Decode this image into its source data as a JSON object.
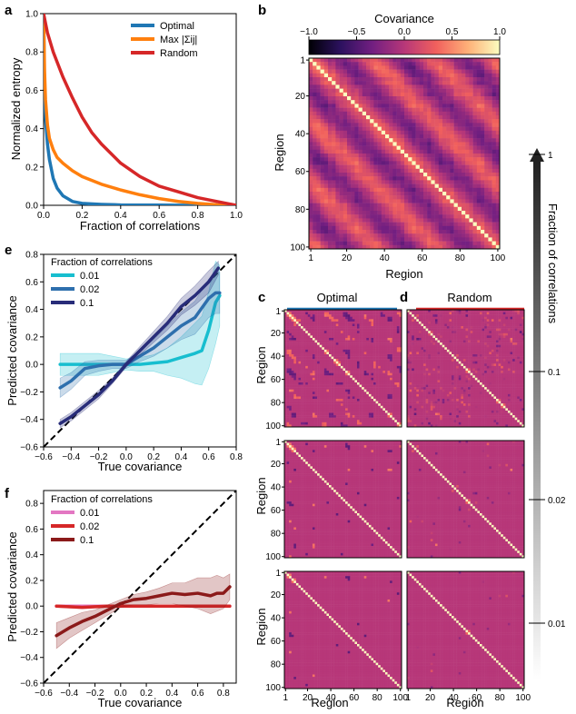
{
  "panels": {
    "a": "a",
    "b": "b",
    "c": "c",
    "d": "d",
    "e": "e",
    "f": "f"
  },
  "cmap": [
    "#000004",
    "#2c115f",
    "#721f81",
    "#b73779",
    "#f1605d",
    "#feb078",
    "#fcfdbf"
  ],
  "chart_data": [
    {
      "id": "a",
      "type": "line",
      "xlabel": "Fraction of correlations",
      "ylabel": "Normalized entropy",
      "xlim": [
        0,
        1
      ],
      "ylim": [
        0,
        1
      ],
      "xticks": [
        "0.0",
        "0.2",
        "0.4",
        "0.6",
        "0.8",
        "1.0"
      ],
      "yticks": [
        "0.0",
        "0.2",
        "0.4",
        "0.6",
        "0.8",
        "1.0"
      ],
      "legend": "top-right",
      "series": [
        {
          "name": "Optimal",
          "color": "#1f77b4",
          "x": [
            0,
            0.005,
            0.01,
            0.02,
            0.03,
            0.05,
            0.07,
            0.1,
            0.15,
            0.2,
            0.3,
            0.4,
            0.6,
            0.8,
            1.0
          ],
          "y": [
            1.0,
            0.6,
            0.45,
            0.32,
            0.24,
            0.14,
            0.09,
            0.05,
            0.02,
            0.01,
            0.005,
            0.002,
            0.001,
            0.0,
            0.0
          ]
        },
        {
          "name": "Max |Σij|",
          "color": "#ff7f0e",
          "x": [
            0,
            0.005,
            0.01,
            0.02,
            0.03,
            0.05,
            0.07,
            0.1,
            0.15,
            0.2,
            0.3,
            0.4,
            0.5,
            0.6,
            0.7,
            0.8,
            0.9,
            1.0
          ],
          "y": [
            1.0,
            0.7,
            0.55,
            0.42,
            0.35,
            0.29,
            0.25,
            0.22,
            0.18,
            0.15,
            0.11,
            0.08,
            0.055,
            0.035,
            0.02,
            0.01,
            0.003,
            0.0
          ]
        },
        {
          "name": "Random",
          "color": "#d62728",
          "x": [
            0,
            0.01,
            0.02,
            0.05,
            0.1,
            0.15,
            0.2,
            0.25,
            0.3,
            0.4,
            0.5,
            0.6,
            0.7,
            0.8,
            0.9,
            1.0
          ],
          "y": [
            1.0,
            0.95,
            0.9,
            0.8,
            0.67,
            0.56,
            0.46,
            0.38,
            0.32,
            0.22,
            0.15,
            0.1,
            0.07,
            0.04,
            0.02,
            0.0
          ]
        }
      ]
    },
    {
      "id": "b",
      "type": "heatmap",
      "title": "Covariance",
      "xlabel": "Region",
      "ylabel": "Region",
      "ticks": [
        "1",
        "20",
        "40",
        "60",
        "80",
        "100"
      ],
      "colorbar_ticks": [
        "−1.0",
        "−0.5",
        "0.0",
        "0.5",
        "1.0"
      ],
      "colorbar_range": [
        -1,
        1
      ]
    },
    {
      "id": "c",
      "type": "heatmap",
      "title": "Optimal",
      "title_color": "#1f77b4",
      "xlabel": "Region",
      "ylabel": "Region",
      "ticks": [
        "1",
        "20",
        "40",
        "60",
        "80",
        "100"
      ],
      "rows": [
        0.1,
        0.02,
        0.01
      ]
    },
    {
      "id": "d",
      "type": "heatmap",
      "title": "Random",
      "title_color": "#d62728",
      "xlabel": "Region",
      "ticks": [
        "1",
        "20",
        "40",
        "60",
        "80",
        "100"
      ],
      "rows": [
        0.1,
        0.02,
        0.01
      ]
    },
    {
      "id": "side",
      "type": "colorbar",
      "label": "Fraction of correlations",
      "ticks": [
        "1",
        "0.1",
        "0.02",
        "0.01"
      ]
    },
    {
      "id": "e",
      "type": "line",
      "xlabel": "True covariance",
      "ylabel": "Predicted covariance",
      "xlim": [
        -0.6,
        0.8
      ],
      "ylim": [
        -0.6,
        0.8
      ],
      "xticks": [
        "−0.6",
        "−0.4",
        "−0.2",
        "0.0",
        "0.2",
        "0.4",
        "0.6",
        "0.8"
      ],
      "yticks": [
        "−0.6",
        "−0.4",
        "−0.2",
        "0.0",
        "0.2",
        "0.4",
        "0.6",
        "0.8"
      ],
      "legend_title": "Fraction of correlations",
      "series": [
        {
          "name": "0.01",
          "color": "#17becf",
          "x": [
            -0.48,
            -0.4,
            -0.3,
            -0.2,
            -0.1,
            0.0,
            0.1,
            0.2,
            0.3,
            0.4,
            0.5,
            0.55,
            0.6,
            0.65,
            0.68
          ],
          "y": [
            0.0,
            0.0,
            0.0,
            0.0,
            0.0,
            0.0,
            0.0,
            0.01,
            0.02,
            0.05,
            0.08,
            0.1,
            0.25,
            0.45,
            0.5
          ],
          "band": [
            0.08,
            0.08,
            0.08,
            0.08,
            0.06,
            0.04,
            0.05,
            0.06,
            0.1,
            0.15,
            0.22,
            0.25,
            0.28,
            0.3,
            0.22
          ]
        },
        {
          "name": "0.02",
          "color": "#2e6fad",
          "x": [
            -0.48,
            -0.4,
            -0.3,
            -0.2,
            -0.1,
            0.0,
            0.1,
            0.2,
            0.3,
            0.4,
            0.5,
            0.6,
            0.65,
            0.68
          ],
          "y": [
            -0.17,
            -0.12,
            -0.03,
            -0.01,
            0.0,
            0.0,
            0.06,
            0.12,
            0.2,
            0.28,
            0.34,
            0.48,
            0.52,
            0.52
          ],
          "band": [
            0.07,
            0.06,
            0.05,
            0.04,
            0.03,
            0.03,
            0.04,
            0.06,
            0.08,
            0.1,
            0.12,
            0.14,
            0.15,
            0.15
          ]
        },
        {
          "name": "0.1",
          "color": "#282c79",
          "x": [
            -0.48,
            -0.4,
            -0.3,
            -0.2,
            -0.1,
            0.0,
            0.1,
            0.2,
            0.3,
            0.4,
            0.5,
            0.6,
            0.67
          ],
          "y": [
            -0.43,
            -0.38,
            -0.3,
            -0.22,
            -0.12,
            0.0,
            0.1,
            0.2,
            0.3,
            0.42,
            0.5,
            0.6,
            0.7
          ],
          "band": [
            0.03,
            0.03,
            0.03,
            0.03,
            0.02,
            0.02,
            0.03,
            0.04,
            0.05,
            0.06,
            0.07,
            0.08,
            0.05
          ]
        }
      ]
    },
    {
      "id": "f",
      "type": "line",
      "xlabel": "True covariance",
      "ylabel": "Predicted covariance",
      "xlim": [
        -0.6,
        0.9
      ],
      "ylim": [
        -0.6,
        0.9
      ],
      "xticks": [
        "−0.6",
        "−0.4",
        "−0.2",
        "0.0",
        "0.2",
        "0.4",
        "0.6",
        "0.8"
      ],
      "yticks": [
        "−0.6",
        "−0.4",
        "−0.2",
        "0.0",
        "0.2",
        "0.4",
        "0.6",
        "0.8"
      ],
      "legend_title": "Fraction of correlations",
      "series": [
        {
          "name": "0.01",
          "color": "#e377c2",
          "x": [
            -0.5,
            -0.3,
            -0.1,
            0.1,
            0.3,
            0.5,
            0.7,
            0.85
          ],
          "y": [
            0.0,
            0.0,
            0.0,
            0.0,
            0.0,
            0.0,
            0.0,
            0.0
          ],
          "band": [
            0.0,
            0.0,
            0.0,
            0.0,
            0.0,
            0.0,
            0.0,
            0.0
          ]
        },
        {
          "name": "0.02",
          "color": "#d62728",
          "x": [
            -0.5,
            -0.3,
            -0.1,
            0.1,
            0.3,
            0.5,
            0.7,
            0.85
          ],
          "y": [
            0.0,
            -0.01,
            0.0,
            0.0,
            0.0,
            0.0,
            0.0,
            0.0
          ],
          "band": [
            0.01,
            0.01,
            0.01,
            0.01,
            0.01,
            0.01,
            0.01,
            0.01
          ]
        },
        {
          "name": "0.1",
          "color": "#8b1a1a",
          "x": [
            -0.5,
            -0.4,
            -0.3,
            -0.2,
            -0.1,
            0.0,
            0.1,
            0.2,
            0.3,
            0.4,
            0.5,
            0.6,
            0.7,
            0.75,
            0.8,
            0.85
          ],
          "y": [
            -0.23,
            -0.17,
            -0.12,
            -0.08,
            -0.03,
            0.02,
            0.05,
            0.06,
            0.08,
            0.1,
            0.09,
            0.1,
            0.08,
            0.1,
            0.1,
            0.15
          ],
          "band": [
            0.1,
            0.08,
            0.07,
            0.05,
            0.04,
            0.03,
            0.04,
            0.05,
            0.06,
            0.08,
            0.09,
            0.12,
            0.14,
            0.14,
            0.12,
            0.1
          ]
        }
      ]
    }
  ]
}
